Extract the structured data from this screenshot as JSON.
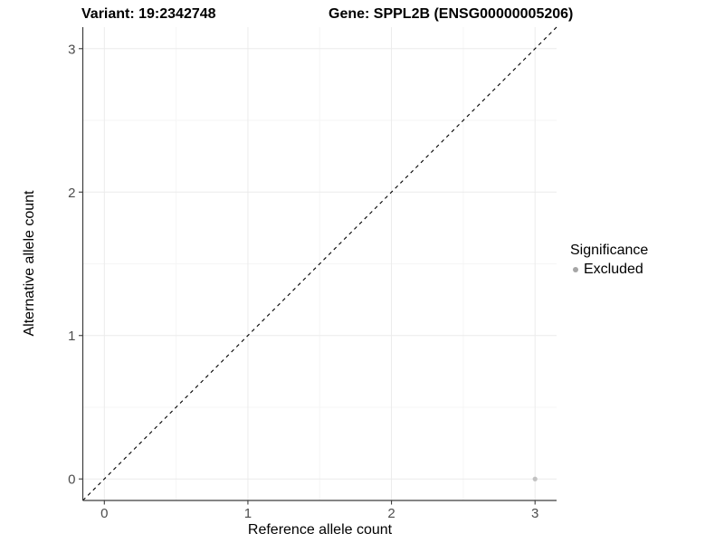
{
  "header": {
    "variant_title": "Variant: 19:2342748",
    "gene_title": "Gene: SPPL2B (ENSG00000005206)"
  },
  "chart_data": {
    "type": "scatter",
    "title_left": "Variant: 19:2342748",
    "title_right": "Gene: SPPL2B (ENSG00000005206)",
    "xlabel": "Reference allele count",
    "ylabel": "Alternative allele count",
    "xlim": [
      -0.15,
      3.15
    ],
    "ylim": [
      -0.15,
      3.15
    ],
    "x_ticks": [
      0,
      1,
      2,
      3
    ],
    "y_ticks": [
      0,
      1,
      2,
      3
    ],
    "minor_ticks": [
      0.5,
      1.5,
      2.5
    ],
    "grid": true,
    "points": [
      {
        "x": 3,
        "y": 0,
        "series": "Excluded"
      }
    ],
    "reference_line": {
      "equation": "y = x",
      "style": "dashed",
      "color": "#000000"
    },
    "legend": {
      "title": "Significance",
      "position": "right",
      "entries": [
        {
          "label": "Excluded",
          "color": "#a6a6a6"
        }
      ]
    }
  },
  "colors": {
    "background": "#ffffff",
    "axis_line": "#3c3c3c",
    "tick_label": "#4d4d4d",
    "grid_major": "#ebebeb",
    "grid_minor": "#f5f5f5",
    "point": "#c2c2c2"
  }
}
